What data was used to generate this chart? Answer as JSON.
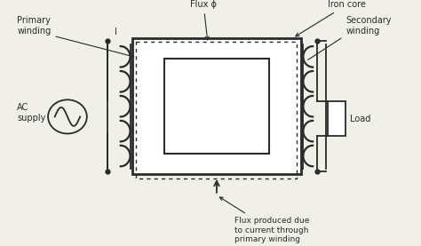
{
  "bg_color": "#f0efe8",
  "line_color": "#2a2a2a",
  "labels": {
    "primary_winding": "Primary\nwinding",
    "ac_supply": "AC\nsupply",
    "flux_phi": "Flux ϕ",
    "iron_core": "Iron core",
    "secondary_winding": "Secondary\nwinding",
    "load": "Load",
    "flux_bottom": "Flux produced due\nto current through\nprimary winding",
    "current_label": "I"
  },
  "fig_w": 4.74,
  "fig_h": 2.77,
  "dpi": 100
}
